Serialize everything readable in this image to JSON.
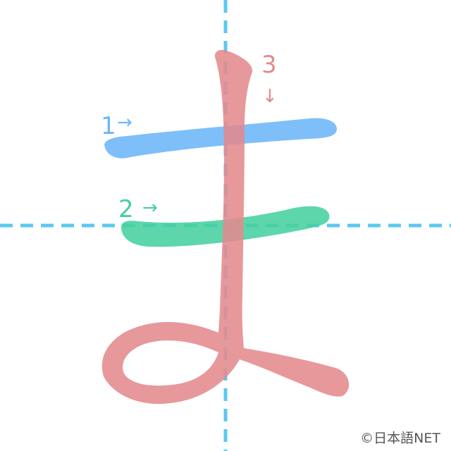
{
  "character": "ま",
  "colors": {
    "guide": "#5bc8f0",
    "stroke1": "#6cb6f8",
    "stroke2": "#45d09e",
    "stroke3": "#e48a8d",
    "background": "#ffffff"
  },
  "strokes": [
    {
      "number": "1",
      "arrow": "→",
      "color": "#6cb6f8"
    },
    {
      "number": "2",
      "arrow": "→",
      "color": "#45d09e"
    },
    {
      "number": "3",
      "arrow": "↓",
      "color": "#e48a8d"
    }
  ],
  "copyright": "©日本語NET"
}
